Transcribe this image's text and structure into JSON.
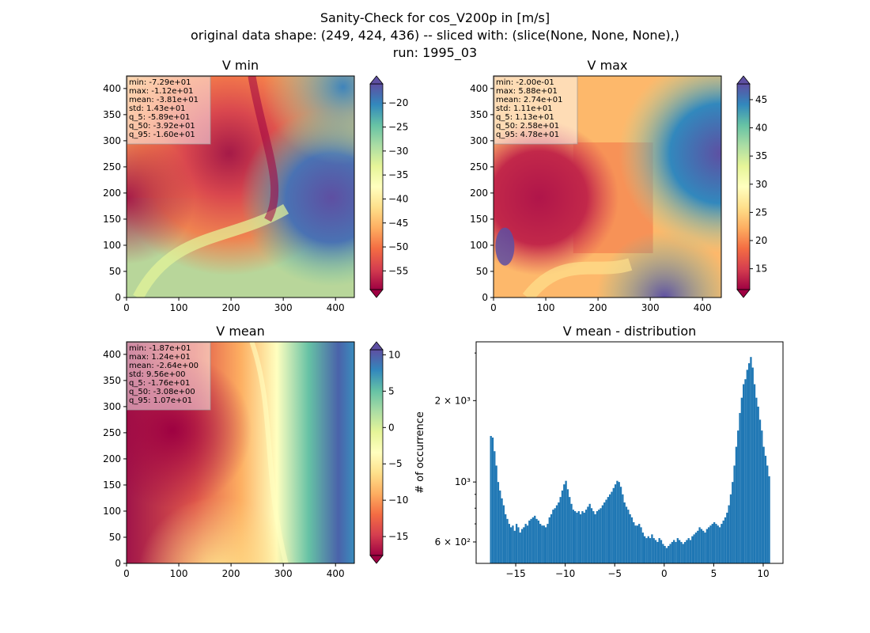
{
  "figure": {
    "title_lines": [
      "Sanity-Check for cos_V200p in [m/s]",
      "original data shape: (249, 424, 436) -- sliced with: (slice(None, None, None),)",
      "run: 1995_03"
    ]
  },
  "chart_data": [
    {
      "type": "heatmap",
      "title": "V min",
      "x_ticks": [
        "0",
        "100",
        "200",
        "300",
        "400"
      ],
      "y_ticks": [
        "0",
        "50",
        "100",
        "150",
        "200",
        "250",
        "300",
        "350",
        "400"
      ],
      "xlim": [
        0,
        436
      ],
      "ylim": [
        0,
        424
      ],
      "colormap": "Spectral",
      "colorbar_range": [
        -58.9,
        -16.0
      ],
      "colorbar_ticks": [
        "-20",
        "-25",
        "-30",
        "-35",
        "-40",
        "-45",
        "-50",
        "-55"
      ],
      "stats": [
        "min: -7.29e+01",
        "max: -1.12e+01",
        "mean: -3.81e+01",
        "std: 1.43e+01",
        "q_5: -5.89e+01",
        "q_50: -3.92e+01",
        "q_95: -1.60e+01"
      ]
    },
    {
      "type": "heatmap",
      "title": "V max",
      "x_ticks": [
        "0",
        "100",
        "200",
        "300",
        "400"
      ],
      "y_ticks": [
        "0",
        "50",
        "100",
        "150",
        "200",
        "250",
        "300",
        "350",
        "400"
      ],
      "xlim": [
        0,
        436
      ],
      "ylim": [
        0,
        424
      ],
      "colormap": "Spectral",
      "colorbar_range": [
        11.3,
        47.8
      ],
      "colorbar_ticks": [
        "15",
        "20",
        "25",
        "30",
        "35",
        "40",
        "45"
      ],
      "stats": [
        "min: -2.00e-01",
        "max: 5.88e+01",
        "mean: 2.74e+01",
        "std: 1.11e+01",
        "q_5: 1.13e+01",
        "q_50: 2.58e+01",
        "q_95: 4.78e+01"
      ]
    },
    {
      "type": "heatmap",
      "title": "V mean",
      "x_ticks": [
        "0",
        "100",
        "200",
        "300",
        "400"
      ],
      "y_ticks": [
        "0",
        "50",
        "100",
        "150",
        "200",
        "250",
        "300",
        "350",
        "400"
      ],
      "xlim": [
        0,
        436
      ],
      "ylim": [
        0,
        424
      ],
      "colormap": "Spectral",
      "colorbar_range": [
        -17.6,
        10.7
      ],
      "colorbar_ticks": [
        "10",
        "5",
        "0",
        "-5",
        "-10",
        "-15"
      ],
      "stats": [
        "min: -1.87e+01",
        "max: 1.24e+01",
        "mean: -2.64e+00",
        "std: 9.56e+00",
        "q_5: -1.76e+01",
        "q_50: -3.08e+00",
        "q_95: 1.07e+01"
      ]
    },
    {
      "type": "bar",
      "title": "V mean - distribution",
      "ylabel": "# of occurrence",
      "y_scale": "log",
      "xlim": [
        -19,
        12
      ],
      "ylim": [
        500,
        3300
      ],
      "x_ticks": [
        "−15",
        "−10",
        "−5",
        "0",
        "5",
        "10"
      ],
      "y_ticks": [
        "6 × 10²",
        "10³",
        "2 × 10³"
      ],
      "bar_color": "#1f77b4",
      "bin_range": [
        -17.6,
        10.7
      ],
      "counts": [
        1480,
        1460,
        1300,
        1150,
        1000,
        930,
        870,
        820,
        760,
        730,
        700,
        680,
        690,
        660,
        700,
        680,
        650,
        670,
        680,
        700,
        690,
        720,
        730,
        740,
        750,
        730,
        720,
        700,
        690,
        690,
        680,
        700,
        740,
        760,
        790,
        800,
        820,
        840,
        880,
        930,
        980,
        1010,
        940,
        880,
        830,
        790,
        780,
        770,
        780,
        760,
        780,
        770,
        790,
        810,
        830,
        800,
        780,
        760,
        780,
        790,
        800,
        820,
        840,
        860,
        880,
        900,
        920,
        950,
        980,
        1010,
        1000,
        960,
        900,
        840,
        810,
        790,
        760,
        740,
        710,
        690,
        690,
        700,
        680,
        650,
        630,
        620,
        630,
        620,
        640,
        620,
        610,
        600,
        620,
        610,
        590,
        580,
        570,
        580,
        590,
        600,
        610,
        600,
        620,
        610,
        600,
        590,
        600,
        610,
        620,
        610,
        630,
        640,
        650,
        660,
        680,
        670,
        660,
        650,
        670,
        680,
        690,
        700,
        710,
        700,
        690,
        680,
        700,
        720,
        740,
        770,
        820,
        900,
        1000,
        1150,
        1350,
        1550,
        1800,
        2050,
        2300,
        2400,
        2600,
        2750,
        2900,
        2650,
        2300,
        2050,
        1900,
        1700,
        1550,
        1350,
        1250,
        1150,
        1050
      ]
    }
  ]
}
